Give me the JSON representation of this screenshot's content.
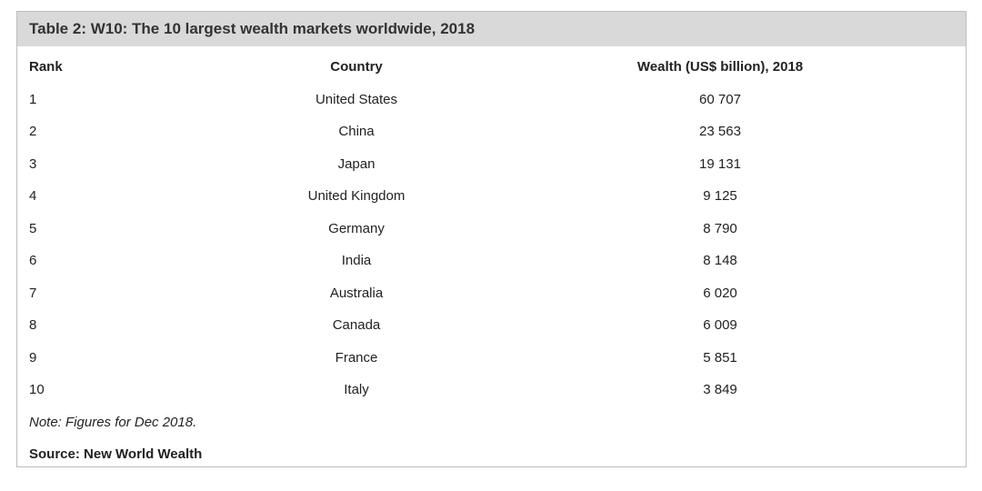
{
  "table": {
    "title": "Table 2: W10: The 10 largest wealth markets worldwide, 2018",
    "header": [
      "Rank",
      "Country",
      "Wealth (US$ billion), 2018"
    ],
    "rows": [
      [
        "1",
        "United States",
        "60 707"
      ],
      [
        "2",
        "China",
        "23 563"
      ],
      [
        "3",
        "Japan",
        "19 131"
      ],
      [
        "4",
        "United Kingdom",
        "9 125"
      ],
      [
        "5",
        "Germany",
        "8 790"
      ],
      [
        "6",
        "India",
        "8 148"
      ],
      [
        "7",
        "Australia",
        "6 020"
      ],
      [
        "8",
        "Canada",
        "6 009"
      ],
      [
        "9",
        "France",
        "5 851"
      ],
      [
        "10",
        "Italy",
        "3 849"
      ]
    ],
    "note": "Note: Figures for Dec 2018.",
    "source": "Source: New World Wealth"
  }
}
